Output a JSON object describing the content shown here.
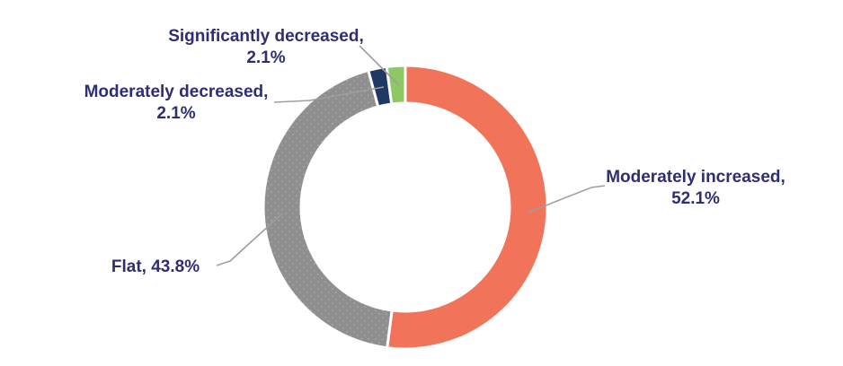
{
  "chart_data": {
    "type": "pie",
    "subtype": "donut",
    "title": "",
    "unit": "%",
    "direction": "clockwise",
    "start_angle_deg": 0,
    "legend_position": "none",
    "data_labels": "outside-callouts-with-leader-lines",
    "segments": [
      {
        "label": "Moderately increased",
        "value": 52.1,
        "display": "Moderately increased, 52.1%",
        "color": "#F0735A",
        "pattern": "solid"
      },
      {
        "label": "Flat",
        "value": 43.8,
        "display": "Flat, 43.8%",
        "color": "#8F8F8F",
        "pattern": "dots"
      },
      {
        "label": "Moderately decreased",
        "value": 2.1,
        "display": "Moderately decreased, 2.1%",
        "color": "#1F3864",
        "pattern": "solid"
      },
      {
        "label": "Significantly decreased",
        "value": 2.1,
        "display": "Significantly decreased, 2.1%",
        "color": "#8DC863",
        "pattern": "solid"
      }
    ]
  },
  "callouts": {
    "significantly_decreased": {
      "line1": "Significantly decreased,",
      "line2": "2.1%"
    },
    "moderately_decreased": {
      "line1": "Moderately decreased,",
      "line2": "2.1%"
    },
    "flat": {
      "line1": "Flat, 43.8%"
    },
    "moderately_increased": {
      "line1": "Moderately increased,",
      "line2": "52.1%"
    }
  },
  "style": {
    "background": "#FFFFFF",
    "label_color": "#2E2E73",
    "leader_line_color": "#9E9E9E",
    "segment_separator_color": "#FFFFFF",
    "flat_dot_color": "#ABABAB"
  }
}
